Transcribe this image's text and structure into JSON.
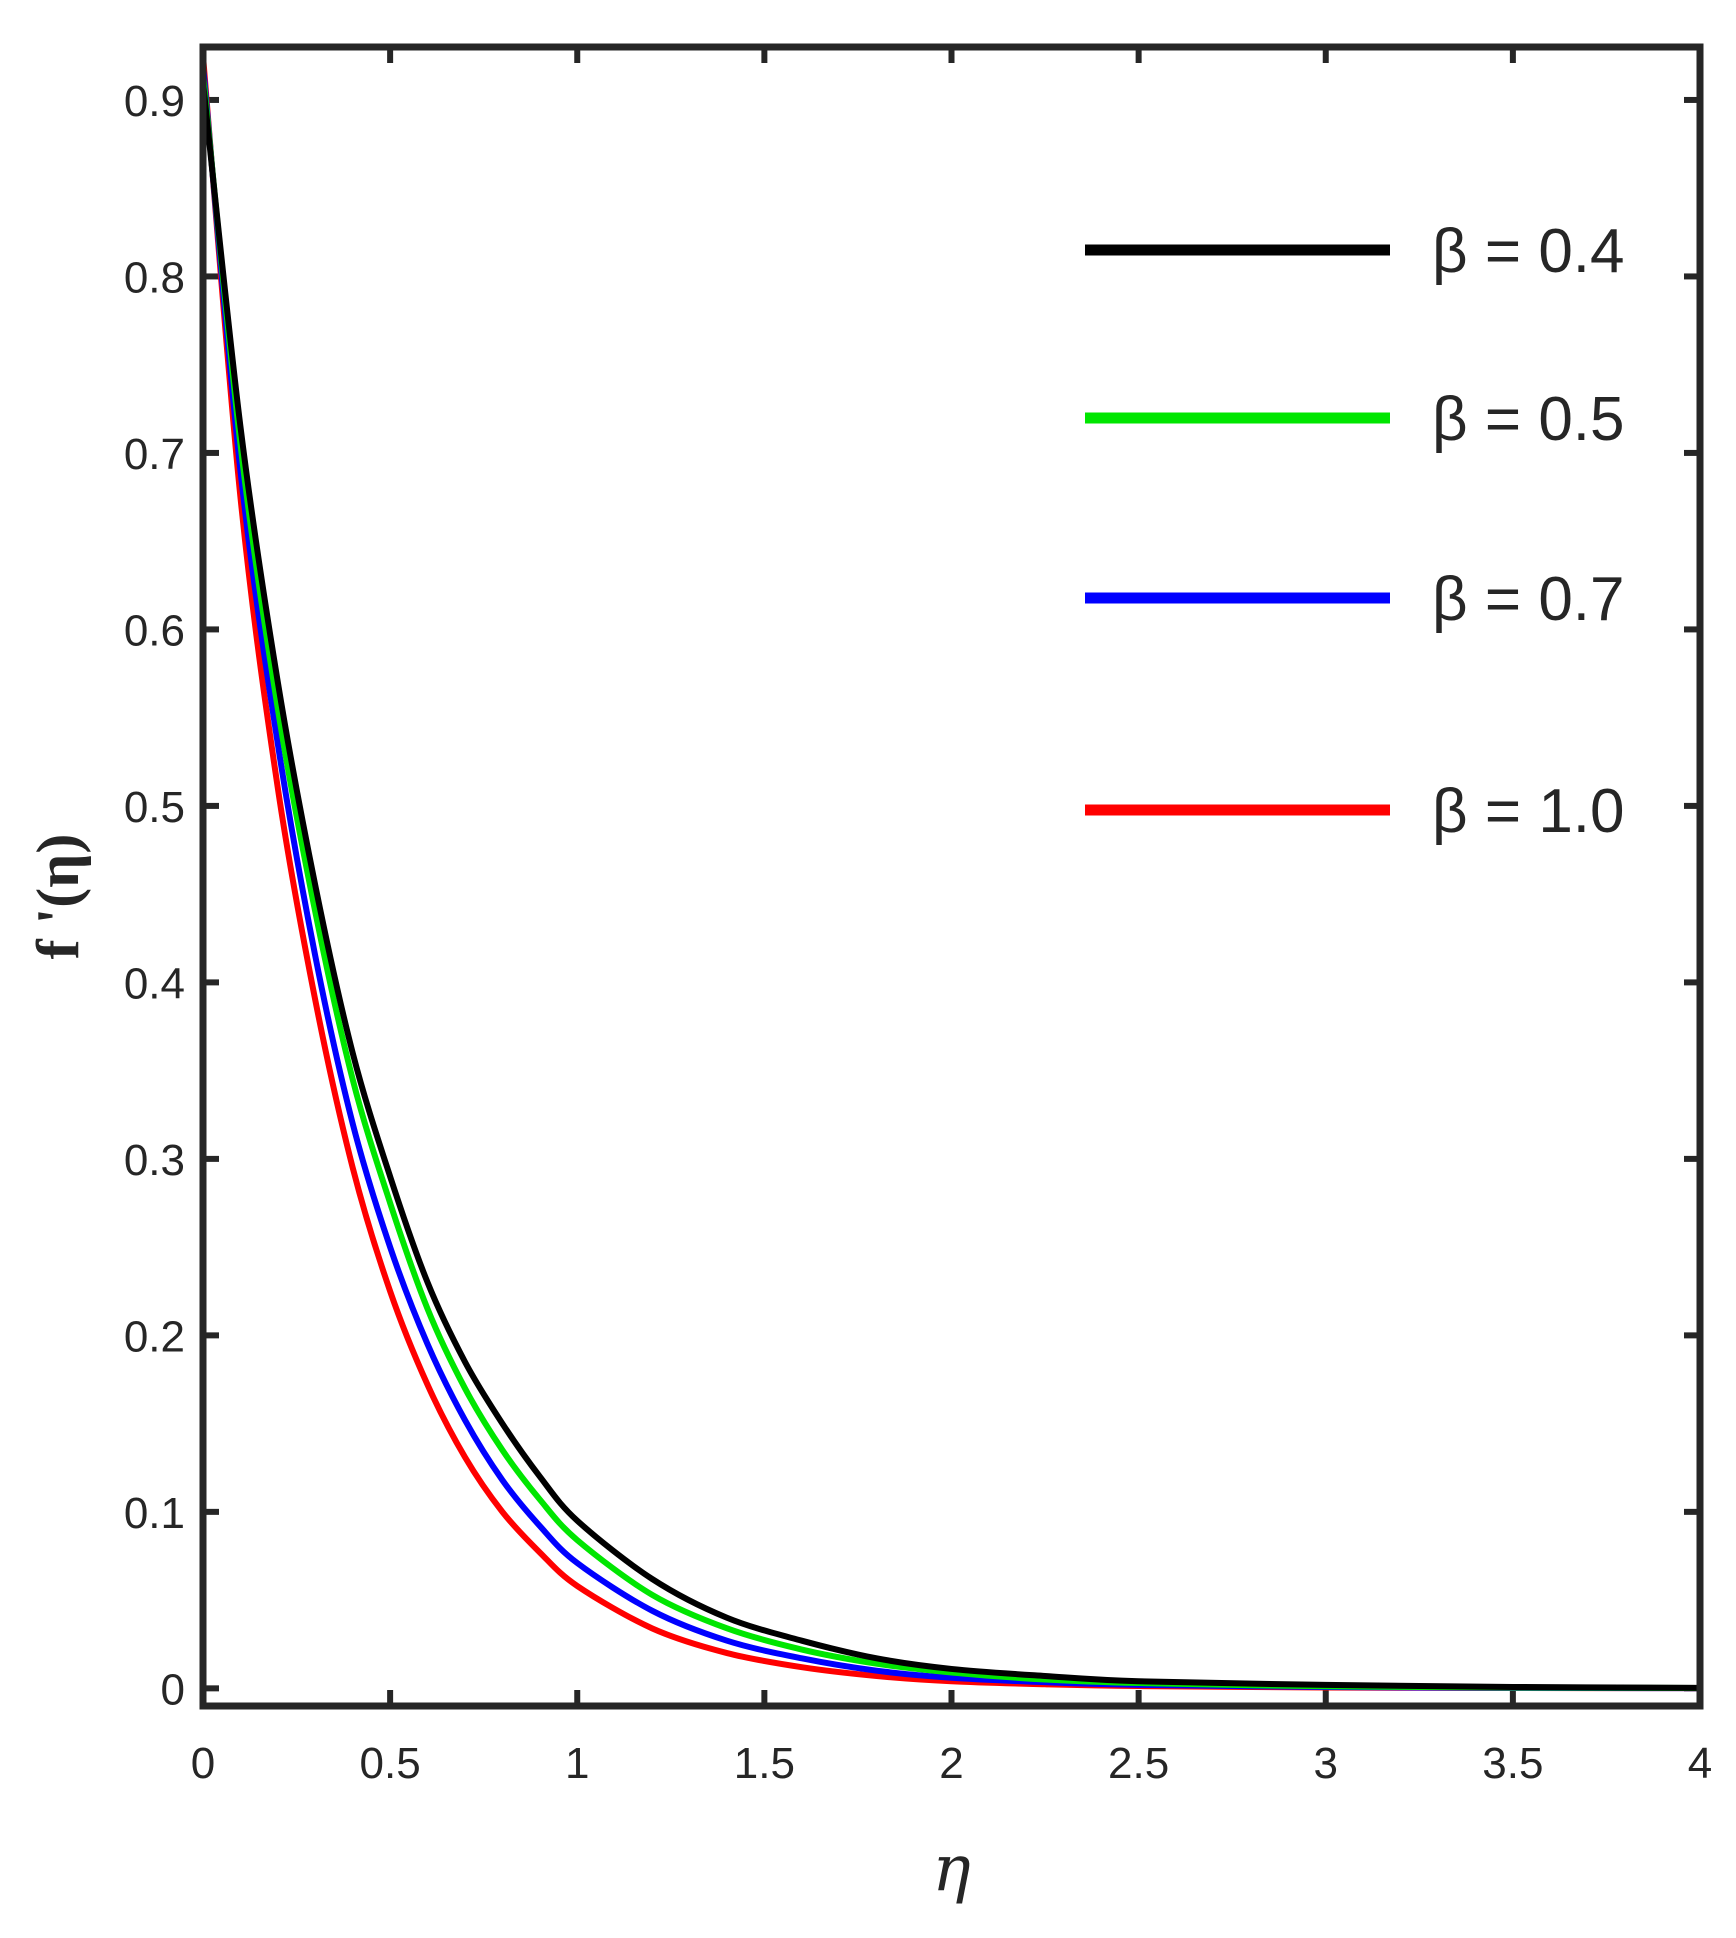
{
  "chart_data": {
    "type": "line",
    "xlabel": "η",
    "ylabel": "f '(η)",
    "xlim": [
      0,
      4
    ],
    "ylim": [
      -0.01,
      0.93
    ],
    "xticks": [
      0,
      0.5,
      1,
      1.5,
      2,
      2.5,
      3,
      3.5,
      4
    ],
    "xtick_labels": [
      "0",
      "0.5",
      "1",
      "1.5",
      "2",
      "2.5",
      "3",
      "3.5",
      "4"
    ],
    "yticks": [
      0,
      0.1,
      0.2,
      0.3,
      0.4,
      0.5,
      0.6,
      0.7,
      0.8,
      0.9
    ],
    "ytick_labels": [
      "0",
      "0.1",
      "0.2",
      "0.3",
      "0.4",
      "0.5",
      "0.6",
      "0.7",
      "0.8",
      "0.9"
    ],
    "grid": false,
    "legend_position": "top-right",
    "x": [
      0,
      0.1,
      0.2,
      0.3,
      0.4,
      0.5,
      0.6,
      0.7,
      0.8,
      0.9,
      1.0,
      1.2,
      1.4,
      1.6,
      1.8,
      2.0,
      2.25,
      2.5,
      3.0,
      3.5,
      4.0
    ],
    "series": [
      {
        "name": "β = 0.4",
        "color": "#000000",
        "values": [
          0.91,
          0.715,
          0.57,
          0.455,
          0.36,
          0.29,
          0.23,
          0.185,
          0.15,
          0.12,
          0.095,
          0.062,
          0.04,
          0.027,
          0.017,
          0.011,
          0.007,
          0.004,
          0.002,
          0.0008,
          0.0003
        ]
      },
      {
        "name": "β = 0.5",
        "color": "#00e600",
        "values": [
          0.915,
          0.705,
          0.555,
          0.44,
          0.345,
          0.275,
          0.215,
          0.17,
          0.135,
          0.107,
          0.084,
          0.053,
          0.034,
          0.022,
          0.014,
          0.009,
          0.005,
          0.003,
          0.0012,
          0.0005,
          0.0002
        ]
      },
      {
        "name": "β = 0.7",
        "color": "#0000ff",
        "values": [
          0.92,
          0.69,
          0.535,
          0.415,
          0.32,
          0.25,
          0.195,
          0.152,
          0.118,
          0.092,
          0.071,
          0.044,
          0.027,
          0.017,
          0.01,
          0.006,
          0.0035,
          0.002,
          0.0008,
          0.0003,
          0.0001
        ]
      },
      {
        "name": "β = 1.0",
        "color": "#ff0000",
        "values": [
          0.925,
          0.675,
          0.51,
          0.39,
          0.295,
          0.225,
          0.172,
          0.131,
          0.1,
          0.077,
          0.058,
          0.034,
          0.02,
          0.012,
          0.007,
          0.004,
          0.0023,
          0.0013,
          0.0005,
          0.0002,
          0.0001
        ]
      }
    ]
  }
}
